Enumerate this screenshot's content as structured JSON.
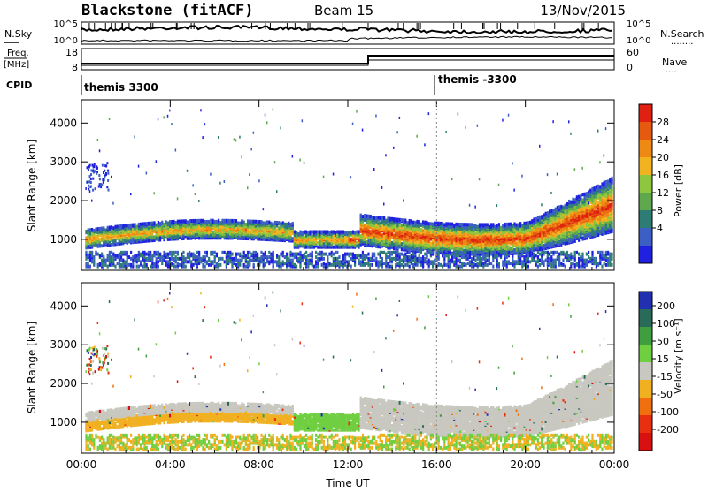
{
  "header": {
    "station": "Blackstone (fitACF)",
    "beam": "Beam 15",
    "date": "13/Nov/2015"
  },
  "upper_panels": {
    "nsky_label": "N.Sky",
    "nsearch_label": "N.Search",
    "nsearch_dots": "........",
    "nsky_tick_top": "10^5",
    "nsky_tick_bottom": "10^0",
    "nsearch_tick_top": "10^5",
    "nsearch_tick_bottom": "10^0",
    "freq_label_1": "Freq.",
    "freq_label_2": "[MHz]",
    "freq_tick_top": "18",
    "freq_tick_bottom": "8",
    "nave_label": "Nave",
    "nave_dots": "....",
    "nave_tick_top": "60",
    "nave_tick_bottom": "0",
    "cpid_label": "CPID",
    "cpid_1": "themis 3300",
    "cpid_2": "themis -3300"
  },
  "chart_data": [
    {
      "type": "heatmap",
      "name": "power",
      "ylabel": "Slant Range [km]",
      "xlabel": "",
      "x_ticks": [
        "00:00",
        "04:00",
        "08:00",
        "12:00",
        "16:00",
        "20:00",
        "00:00"
      ],
      "xlim_hours": [
        0,
        24
      ],
      "ylim": [
        200,
        4600
      ],
      "y_ticks": [
        1000,
        2000,
        3000,
        4000
      ],
      "colorbar": {
        "label": "Power [dB]",
        "ticks": [
          4,
          8,
          12,
          16,
          20,
          24,
          28
        ],
        "colors": [
          "#2020e0",
          "#3b5fc4",
          "#2e7d74",
          "#5fa84e",
          "#8dc63f",
          "#f2b320",
          "#ee8a14",
          "#e65a10",
          "#e02010"
        ]
      },
      "scatter_bands": [
        {
          "t_start": 0.0,
          "t_end": 9.5,
          "range_low": 820,
          "range_high": 1250,
          "peak_db": 20
        },
        {
          "t_start": 12.3,
          "t_end": 23.8,
          "range_low": 900,
          "range_high": 2200,
          "peak_db": 28
        }
      ]
    },
    {
      "type": "heatmap",
      "name": "velocity",
      "ylabel": "Slant Range [km]",
      "xlabel": "Time UT",
      "x_ticks": [
        "00:00",
        "04:00",
        "08:00",
        "12:00",
        "16:00",
        "20:00",
        "00:00"
      ],
      "xlim_hours": [
        0,
        24
      ],
      "ylim": [
        200,
        4600
      ],
      "y_ticks": [
        1000,
        2000,
        3000,
        4000
      ],
      "colorbar": {
        "label": "Velocity [m s⁻¹]",
        "ticks": [
          200,
          100,
          50,
          15,
          -15,
          -50,
          -100,
          -200
        ],
        "colors": [
          "#2030b0",
          "#2a6a58",
          "#3f9f3f",
          "#70cf40",
          "#c8c8c0",
          "#f0b020",
          "#f07010",
          "#e83010",
          "#d81010"
        ]
      }
    }
  ]
}
